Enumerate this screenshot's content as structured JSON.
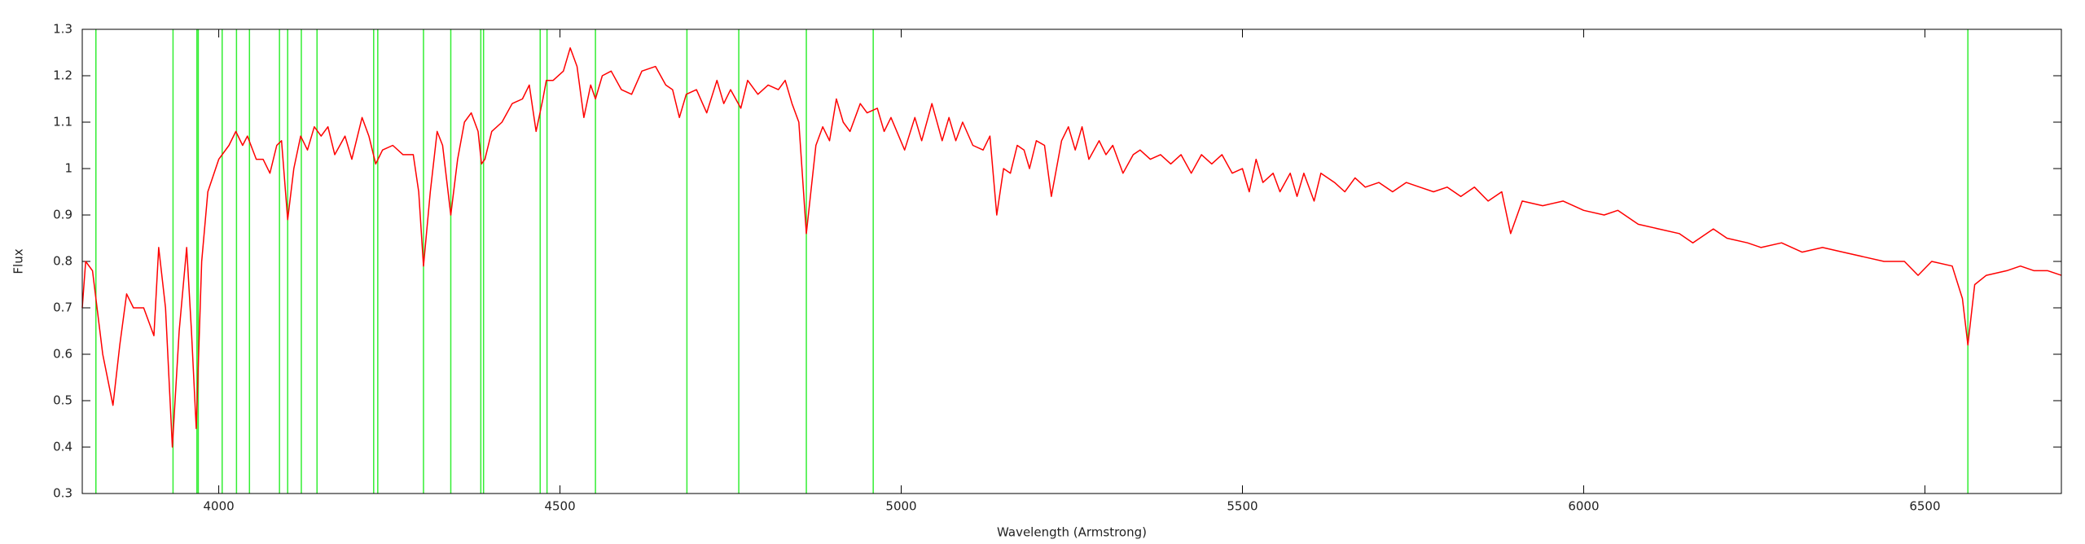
{
  "chart_data": {
    "type": "line",
    "xlabel": "Wavelength (Armstrong)",
    "ylabel": "Flux",
    "xlim": [
      3800,
      6700
    ],
    "ylim": [
      0.3,
      1.3
    ],
    "xticks": [
      4000,
      4500,
      5000,
      5500,
      6000,
      6500
    ],
    "yticks": [
      0.3,
      0.4,
      0.5,
      0.6,
      0.7,
      0.8,
      0.9,
      1,
      1.1,
      1.2,
      1.3
    ],
    "x": [
      3800,
      3805,
      3815,
      3830,
      3845,
      3855,
      3865,
      3875,
      3890,
      3905,
      3912,
      3922,
      3932,
      3942,
      3953,
      3960,
      3967,
      3975,
      3984,
      4000,
      4015,
      4025,
      4035,
      4042,
      4055,
      4065,
      4075,
      4085,
      4092,
      4101,
      4110,
      4120,
      4130,
      4140,
      4150,
      4160,
      4170,
      4185,
      4195,
      4210,
      4220,
      4230,
      4240,
      4255,
      4270,
      4285,
      4293,
      4300,
      4310,
      4320,
      4328,
      4340,
      4350,
      4360,
      4370,
      4380,
      4385,
      4390,
      4400,
      4415,
      4430,
      4445,
      4455,
      4465,
      4475,
      4480,
      4490,
      4505,
      4515,
      4525,
      4535,
      4545,
      4552,
      4562,
      4575,
      4590,
      4605,
      4620,
      4640,
      4655,
      4665,
      4675,
      4685,
      4700,
      4715,
      4730,
      4740,
      4750,
      4765,
      4775,
      4790,
      4805,
      4820,
      4830,
      4840,
      4850,
      4861,
      4875,
      4885,
      4895,
      4905,
      4915,
      4925,
      4940,
      4950,
      4965,
      4975,
      4985,
      5005,
      5020,
      5030,
      5045,
      5060,
      5070,
      5080,
      5090,
      5105,
      5120,
      5130,
      5140,
      5150,
      5160,
      5170,
      5180,
      5188,
      5198,
      5210,
      5220,
      5235,
      5245,
      5255,
      5265,
      5275,
      5290,
      5300,
      5310,
      5325,
      5340,
      5350,
      5365,
      5380,
      5395,
      5410,
      5425,
      5440,
      5455,
      5470,
      5485,
      5500,
      5510,
      5520,
      5530,
      5545,
      5555,
      5570,
      5580,
      5590,
      5605,
      5615,
      5635,
      5650,
      5665,
      5680,
      5700,
      5720,
      5740,
      5760,
      5780,
      5800,
      5820,
      5840,
      5860,
      5880,
      5893,
      5910,
      5940,
      5970,
      6000,
      6030,
      6050,
      6080,
      6110,
      6140,
      6160,
      6190,
      6210,
      6240,
      6260,
      6290,
      6320,
      6350,
      6380,
      6410,
      6440,
      6470,
      6490,
      6510,
      6540,
      6555,
      6563,
      6573,
      6590,
      6620,
      6640,
      6660,
      6680,
      6700
    ],
    "series": [
      {
        "color": "#ff0000",
        "values": [
          0.7,
          0.8,
          0.78,
          0.6,
          0.49,
          0.62,
          0.73,
          0.7,
          0.7,
          0.64,
          0.83,
          0.7,
          0.4,
          0.65,
          0.83,
          0.65,
          0.44,
          0.8,
          0.95,
          1.02,
          1.05,
          1.08,
          1.05,
          1.07,
          1.02,
          1.02,
          0.99,
          1.05,
          1.06,
          0.89,
          1.0,
          1.07,
          1.04,
          1.09,
          1.07,
          1.09,
          1.03,
          1.07,
          1.02,
          1.11,
          1.07,
          1.01,
          1.04,
          1.05,
          1.03,
          1.03,
          0.95,
          0.79,
          0.95,
          1.08,
          1.05,
          0.9,
          1.02,
          1.1,
          1.12,
          1.08,
          1.01,
          1.02,
          1.08,
          1.1,
          1.14,
          1.15,
          1.18,
          1.08,
          1.15,
          1.19,
          1.19,
          1.21,
          1.26,
          1.22,
          1.11,
          1.18,
          1.15,
          1.2,
          1.21,
          1.17,
          1.16,
          1.21,
          1.22,
          1.18,
          1.17,
          1.11,
          1.16,
          1.17,
          1.12,
          1.19,
          1.14,
          1.17,
          1.13,
          1.19,
          1.16,
          1.18,
          1.17,
          1.19,
          1.14,
          1.1,
          0.86,
          1.05,
          1.09,
          1.06,
          1.15,
          1.1,
          1.08,
          1.14,
          1.12,
          1.13,
          1.08,
          1.11,
          1.04,
          1.11,
          1.06,
          1.14,
          1.06,
          1.11,
          1.06,
          1.1,
          1.05,
          1.04,
          1.07,
          0.9,
          1.0,
          0.99,
          1.05,
          1.04,
          1.0,
          1.06,
          1.05,
          0.94,
          1.06,
          1.09,
          1.04,
          1.09,
          1.02,
          1.06,
          1.03,
          1.05,
          0.99,
          1.03,
          1.04,
          1.02,
          1.03,
          1.01,
          1.03,
          0.99,
          1.03,
          1.01,
          1.03,
          0.99,
          1.0,
          0.95,
          1.02,
          0.97,
          0.99,
          0.95,
          0.99,
          0.94,
          0.99,
          0.93,
          0.99,
          0.97,
          0.95,
          0.98,
          0.96,
          0.97,
          0.95,
          0.97,
          0.96,
          0.95,
          0.96,
          0.94,
          0.96,
          0.93,
          0.95,
          0.86,
          0.93,
          0.92,
          0.93,
          0.91,
          0.9,
          0.91,
          0.88,
          0.87,
          0.86,
          0.84,
          0.87,
          0.85,
          0.84,
          0.83,
          0.84,
          0.82,
          0.83,
          0.82,
          0.81,
          0.8,
          0.8,
          0.77,
          0.8,
          0.79,
          0.72,
          0.62,
          0.75,
          0.77,
          0.78,
          0.79,
          0.78,
          0.78,
          0.77
        ]
      }
    ],
    "vertical_lines": {
      "color": "#33ee33",
      "x": [
        3820,
        3933,
        3968,
        3970,
        4005,
        4026,
        4045,
        4089,
        4101,
        4121,
        4144,
        4227,
        4233,
        4300,
        4340,
        4384,
        4388,
        4471,
        4481,
        4552,
        4686,
        4762,
        4861,
        4959,
        6563
      ]
    }
  }
}
